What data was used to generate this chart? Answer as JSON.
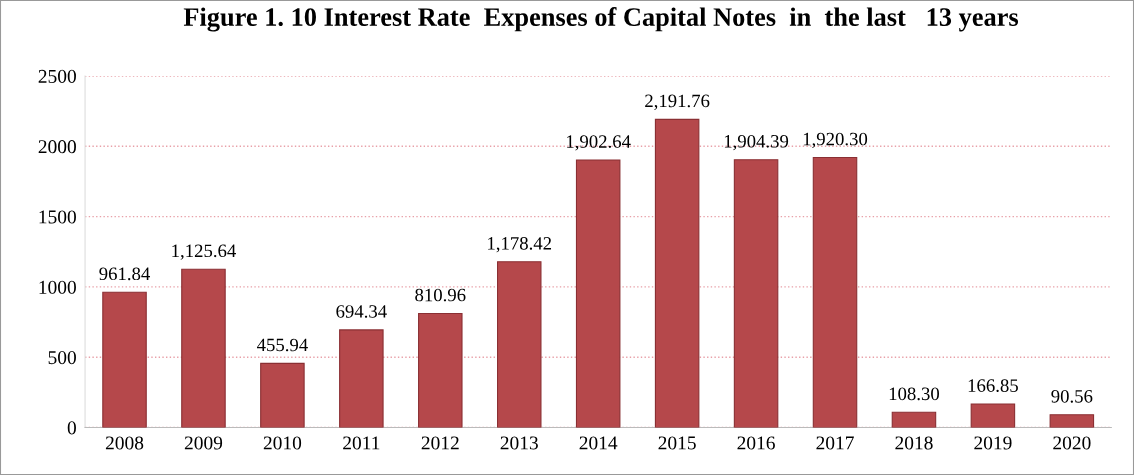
{
  "chart_data": {
    "type": "bar",
    "title": "Figure 1. 10 Interest Rate  Expenses of Capital Notes  in  the last   13 years",
    "categories": [
      "2008",
      "2009",
      "2010",
      "2011",
      "2012",
      "2013",
      "2014",
      "2015",
      "2016",
      "2017",
      "2018",
      "2019",
      "2020"
    ],
    "values": [
      961.84,
      1125.64,
      455.94,
      694.34,
      810.96,
      1178.42,
      1902.64,
      2191.76,
      1904.39,
      1920.3,
      108.3,
      166.85,
      90.56
    ],
    "value_labels": [
      "961.84",
      "1,125.64",
      "455.94",
      "694.34",
      "810.96",
      "1,178.42",
      "1,902.64",
      "2,191.76",
      "1,904.39",
      "1,920.30",
      "108.30",
      "166.85",
      "90.56"
    ],
    "color": "#b5484b",
    "ylim": [
      0,
      2500
    ],
    "yticks": [
      0,
      500,
      1000,
      1500,
      2000,
      2500
    ],
    "grid": "y",
    "legend": false
  }
}
